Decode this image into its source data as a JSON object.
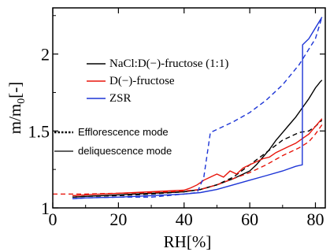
{
  "chart_data": {
    "type": "line",
    "xlabel": "RH[%]",
    "ylabel": "m/m0[-]",
    "xlim": [
      0,
      83
    ],
    "ylim": [
      1.0,
      2.3
    ],
    "xticks": [
      0,
      20,
      40,
      60,
      80
    ],
    "yticks": [
      1,
      1.5,
      2
    ],
    "grid": false,
    "legend_position": "top-left",
    "series": [
      {
        "name": "NaCl:D(−)-fructose (1:1)",
        "mode": "deliquescence",
        "color": "#000000",
        "style": "solid",
        "x": [
          6,
          10,
          15,
          20,
          25,
          30,
          35,
          40,
          45,
          50,
          55,
          60,
          62,
          64,
          66,
          68,
          70,
          72,
          74,
          76,
          78,
          80,
          81.5,
          82
        ],
        "y": [
          1.07,
          1.075,
          1.08,
          1.085,
          1.09,
          1.095,
          1.1,
          1.105,
          1.12,
          1.15,
          1.19,
          1.24,
          1.28,
          1.33,
          1.38,
          1.44,
          1.49,
          1.54,
          1.59,
          1.65,
          1.71,
          1.78,
          1.82,
          1.83
        ]
      },
      {
        "name": "NaCl:D(−)-fructose (1:1)",
        "mode": "efflorescence",
        "color": "#000000",
        "style": "dashed",
        "x": [
          6,
          10,
          20,
          30,
          40,
          45,
          50,
          55,
          60,
          65,
          70,
          75,
          78,
          80,
          82
        ],
        "y": [
          1.07,
          1.075,
          1.08,
          1.09,
          1.105,
          1.12,
          1.15,
          1.2,
          1.28,
          1.36,
          1.44,
          1.49,
          1.5,
          1.53,
          1.57
        ]
      },
      {
        "name": "D(−)-fructose",
        "mode": "deliquescence",
        "color": "#e8150b",
        "style": "solid",
        "x": [
          6,
          10,
          15,
          20,
          25,
          30,
          35,
          40,
          42,
          44,
          46,
          48,
          50,
          52,
          54,
          56,
          58,
          60,
          62,
          64,
          66,
          68,
          70,
          72,
          74,
          76,
          78,
          80,
          82
        ],
        "y": [
          1.08,
          1.085,
          1.09,
          1.095,
          1.1,
          1.105,
          1.11,
          1.115,
          1.13,
          1.15,
          1.18,
          1.2,
          1.22,
          1.2,
          1.24,
          1.22,
          1.26,
          1.28,
          1.3,
          1.32,
          1.33,
          1.36,
          1.38,
          1.4,
          1.42,
          1.45,
          1.48,
          1.53,
          1.58
        ]
      },
      {
        "name": "D(−)-fructose",
        "mode": "efflorescence",
        "color": "#e8150b",
        "style": "dashed",
        "x": [
          0,
          5,
          10,
          20,
          30,
          40,
          45,
          50,
          55,
          60,
          65,
          70,
          75,
          78,
          80,
          82
        ],
        "y": [
          1.09,
          1.09,
          1.09,
          1.095,
          1.1,
          1.11,
          1.12,
          1.15,
          1.19,
          1.23,
          1.28,
          1.34,
          1.39,
          1.43,
          1.48,
          1.54
        ]
      },
      {
        "name": "ZSR",
        "mode": "deliquescence",
        "color": "#1d35d6",
        "style": "solid",
        "x": [
          6,
          10,
          20,
          30,
          40,
          45,
          50,
          55,
          60,
          65,
          70,
          74,
          76,
          76.1,
          78,
          80,
          82
        ],
        "y": [
          1.06,
          1.065,
          1.07,
          1.08,
          1.09,
          1.1,
          1.12,
          1.15,
          1.18,
          1.21,
          1.24,
          1.27,
          1.28,
          2.06,
          2.1,
          2.17,
          2.24
        ]
      },
      {
        "name": "ZSR",
        "mode": "efflorescence",
        "color": "#1d35d6",
        "style": "dashed",
        "x": [
          6,
          10,
          20,
          30,
          35,
          40,
          44,
          46,
          48,
          50,
          55,
          60,
          65,
          70,
          75,
          80,
          82
        ],
        "y": [
          1.06,
          1.065,
          1.07,
          1.07,
          1.08,
          1.09,
          1.1,
          1.2,
          1.49,
          1.51,
          1.56,
          1.62,
          1.7,
          1.8,
          1.93,
          2.1,
          2.24
        ]
      }
    ],
    "legend": {
      "series_entries": [
        {
          "label": "NaCl:D(−)-fructose (1:1)",
          "color": "#000000"
        },
        {
          "label": "D(−)-fructose",
          "color": "#e8150b"
        },
        {
          "label": "ZSR",
          "color": "#1d35d6"
        }
      ],
      "mode_entries": [
        {
          "label": "Efflorescence mode",
          "style": "dotted"
        },
        {
          "label": "deliquescence mode",
          "style": "solid"
        }
      ]
    }
  }
}
